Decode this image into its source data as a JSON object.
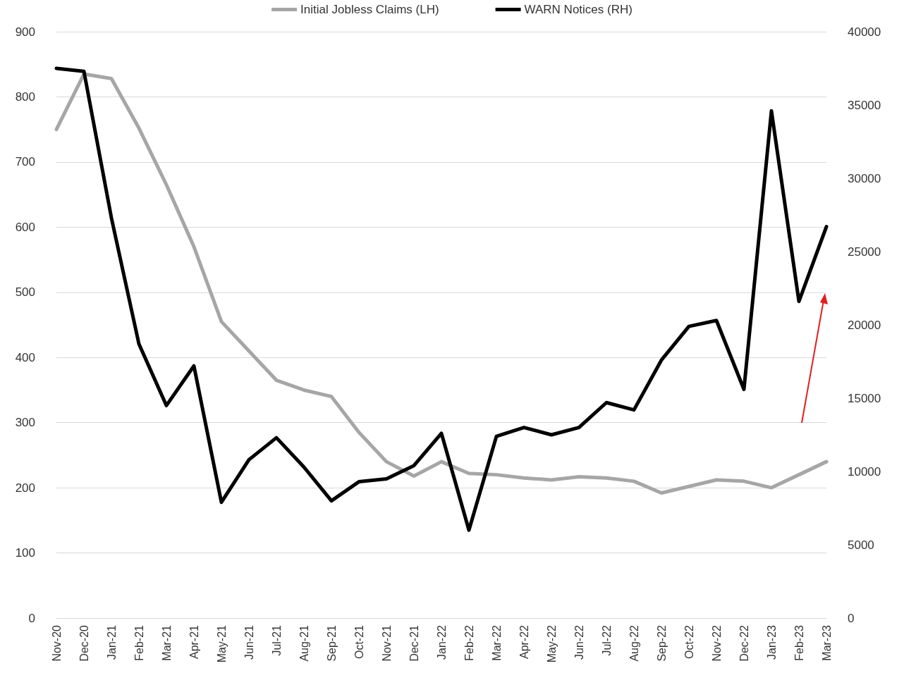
{
  "chart_data": {
    "type": "line",
    "categories": [
      "Nov-20",
      "Dec-20",
      "Jan-21",
      "Feb-21",
      "Mar-21",
      "Apr-21",
      "May-21",
      "Jun-21",
      "Jul-21",
      "Aug-21",
      "Sep-21",
      "Oct-21",
      "Nov-21",
      "Dec-21",
      "Jan-22",
      "Feb-22",
      "Mar-22",
      "Apr-22",
      "May-22",
      "Jun-22",
      "Jul-22",
      "Aug-22",
      "Sep-22",
      "Oct-22",
      "Nov-22",
      "Dec-22",
      "Jan-23",
      "Feb-23",
      "Mar-23"
    ],
    "series": [
      {
        "name": "Initial Jobless Claims (LH)",
        "color": "#a6a6a6",
        "values": [
          750,
          835,
          828,
          752,
          665,
          570,
          455,
          410,
          365,
          350,
          340,
          285,
          240,
          218,
          240,
          222,
          220,
          215,
          212,
          217,
          215,
          210,
          192,
          202,
          212,
          210,
          200,
          220,
          240
        ]
      },
      {
        "name": "WARN Notices (RH)",
        "color": "#000000",
        "axis": "y2",
        "values": [
          37500,
          37300,
          27300,
          18700,
          14500,
          17200,
          7900,
          10800,
          12300,
          10300,
          8000,
          9300,
          9500,
          10400,
          12600,
          6000,
          12400,
          13000,
          12500,
          13000,
          14700,
          14200,
          17600,
          19900,
          20300,
          15600,
          34600,
          21600,
          26700
        ]
      }
    ],
    "ylim": [
      0,
      900
    ],
    "yticks": [
      0,
      100,
      200,
      300,
      400,
      500,
      600,
      700,
      800,
      900
    ],
    "y2lim": [
      0,
      40000
    ],
    "y2ticks": [
      0,
      5000,
      10000,
      15000,
      20000,
      25000,
      30000,
      35000,
      40000
    ],
    "grid": "y",
    "legend": "top",
    "marker": "none",
    "line_style": "solid"
  }
}
